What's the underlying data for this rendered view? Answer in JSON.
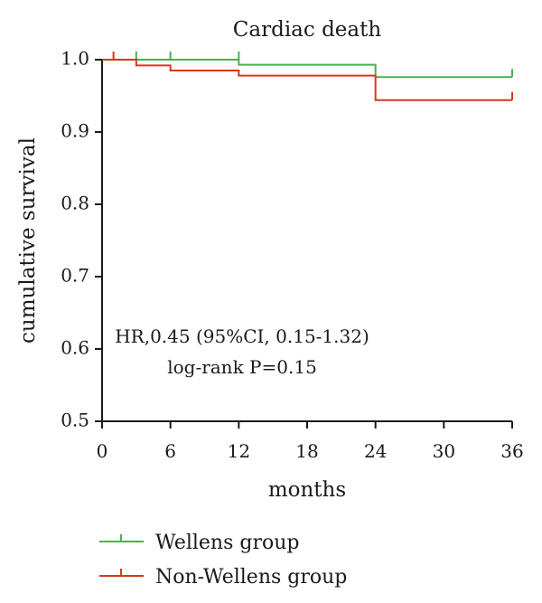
{
  "chart_data": {
    "type": "line",
    "title": "Cardiac death",
    "xlabel": "months",
    "ylabel": "cumulative survival",
    "xlim": [
      0,
      36
    ],
    "ylim": [
      0.5,
      1.0
    ],
    "xticks": [
      0,
      6,
      12,
      18,
      24,
      30,
      36
    ],
    "yticks": [
      0.5,
      0.6,
      0.7,
      0.8,
      0.9,
      1.0
    ],
    "ytick_labels": [
      "0.5",
      "0.6",
      "0.7",
      "0.8",
      "0.9",
      "1.0"
    ],
    "annotations": [
      "HR,0.45 (95%CI, 0.15-1.32)",
      "log-rank P=0.15"
    ],
    "legend_position": "bottom-left",
    "grid": false,
    "series": [
      {
        "name": "Wellens group",
        "color": "#4caf50",
        "steps": [
          [
            0,
            1.0
          ],
          [
            12,
            0.993
          ],
          [
            24,
            0.976
          ],
          [
            36,
            0.976
          ]
        ],
        "censored": [
          [
            3,
            1.0
          ],
          [
            6,
            1.0
          ],
          [
            12,
            1.0
          ],
          [
            36,
            0.976
          ]
        ]
      },
      {
        "name": "Non-Wellens group",
        "color": "#d9361c",
        "steps": [
          [
            0,
            1.0
          ],
          [
            3,
            0.992
          ],
          [
            6,
            0.985
          ],
          [
            12,
            0.978
          ],
          [
            24,
            0.944
          ],
          [
            36,
            0.944
          ]
        ],
        "censored": [
          [
            1,
            1.0
          ],
          [
            36,
            0.944
          ]
        ]
      }
    ]
  }
}
